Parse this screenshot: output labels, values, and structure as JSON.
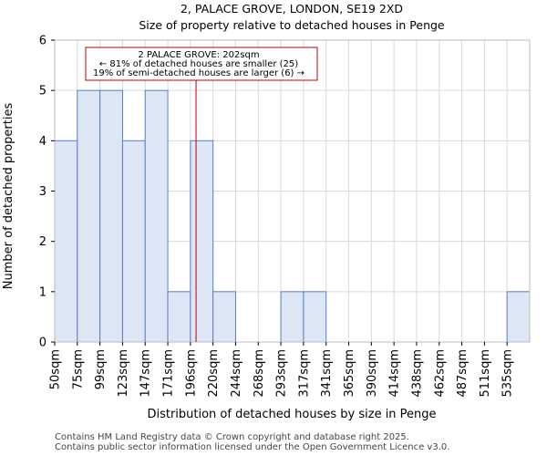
{
  "title_line1": "2, PALACE GROVE, LONDON, SE19 2XD",
  "title_line2": "Size of property relative to detached houses in Penge",
  "footer_line1": "Contains HM Land Registry data © Crown copyright and database right 2025.",
  "footer_line2": "Contains public sector information licensed under the Open Government Licence v3.0.",
  "chart_data": {
    "type": "bar",
    "xlabel": "Distribution of detached houses by size in Penge",
    "ylabel": "Number of detached properties",
    "categories": [
      "50sqm",
      "75sqm",
      "99sqm",
      "123sqm",
      "147sqm",
      "171sqm",
      "196sqm",
      "220sqm",
      "244sqm",
      "268sqm",
      "293sqm",
      "317sqm",
      "341sqm",
      "365sqm",
      "390sqm",
      "414sqm",
      "438sqm",
      "462sqm",
      "487sqm",
      "511sqm",
      "535sqm"
    ],
    "values": [
      4,
      5,
      5,
      4,
      5,
      1,
      4,
      1,
      0,
      0,
      1,
      1,
      0,
      0,
      0,
      0,
      0,
      0,
      0,
      0,
      1
    ],
    "ylim": [
      0,
      6
    ],
    "yticks": [
      "0",
      "1",
      "2",
      "3",
      "4",
      "5",
      "6"
    ],
    "grid": true,
    "bar_color": "#dce6f5",
    "bar_edge_color": "#5b7fc4",
    "marker": {
      "value": 202,
      "color": "#c00000"
    },
    "annotation": {
      "line1": "2 PALACE GROVE: 202sqm",
      "line2": "← 81% of detached houses are smaller (25)",
      "line3": "19% of semi-detached houses are larger (6) →"
    }
  }
}
